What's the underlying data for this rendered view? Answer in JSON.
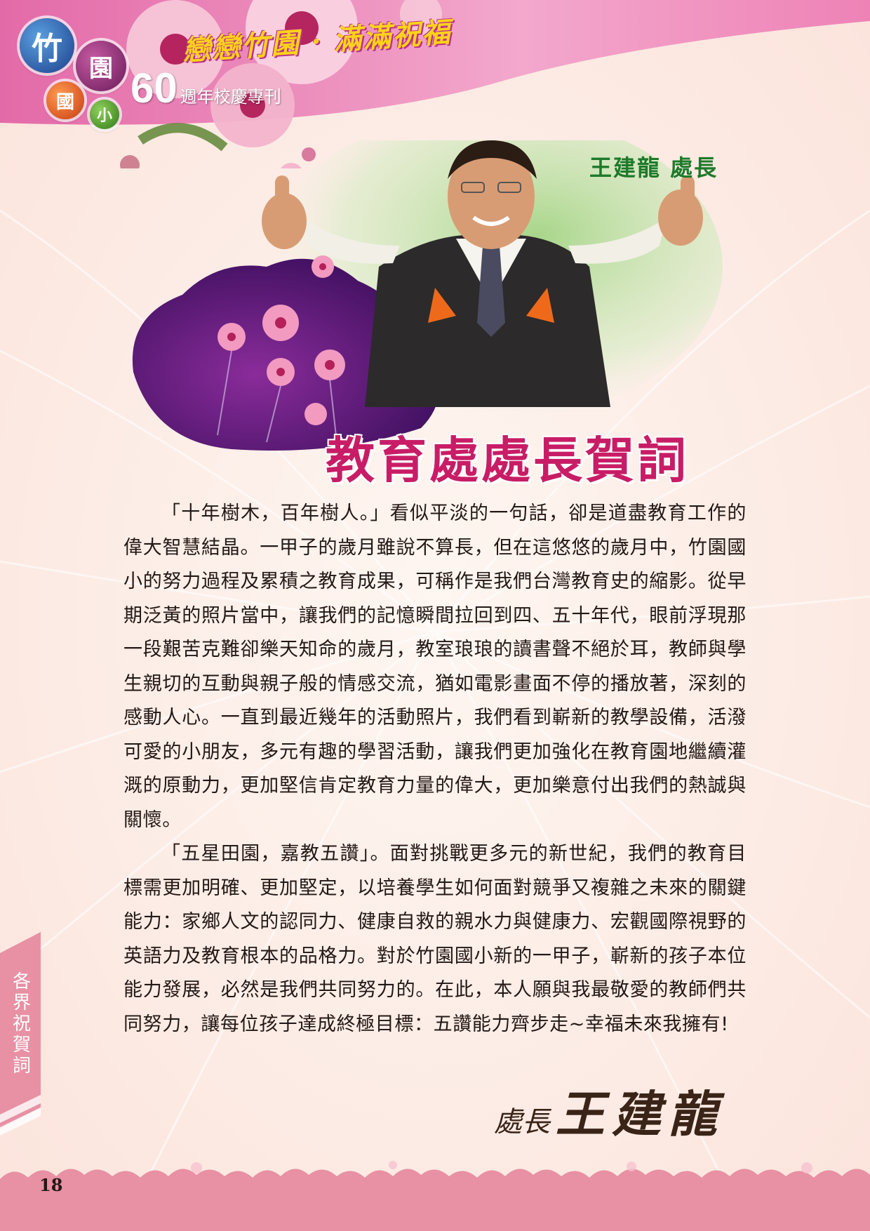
{
  "header": {
    "badges": [
      "竹",
      "園",
      "國",
      "小"
    ],
    "slogan": "戀戀竹園 · 滿滿祝福",
    "anniversary_number": "60",
    "anniversary_text": "週年校慶專刊"
  },
  "portrait": {
    "name_title": "王建龍  處長"
  },
  "section_title": "教育處處長賀詞",
  "body": {
    "paragraphs": [
      "「十年樹木，百年樹人。」看似平淡的一句話，卻是道盡教育工作的偉大智慧結晶。一甲子的歲月雖說不算長，但在這悠悠的歲月中，竹園國小的努力過程及累積之教育成果，可稱作是我們台灣教育史的縮影。從早期泛黃的照片當中，讓我們的記憶瞬間拉回到四、五十年代，眼前浮現那一段艱苦克難卻樂天知命的歲月，教室琅琅的讀書聲不絕於耳，教師與學生親切的互動與親子般的情感交流，猶如電影畫面不停的播放著，深刻的感動人心。一直到最近幾年的活動照片，我們看到嶄新的教學設備，活潑可愛的小朋友，多元有趣的學習活動，讓我們更加強化在教育園地繼續灌溉的原動力，更加堅信肯定教育力量的偉大，更加樂意付出我們的熱誠與關懷。",
      "「五星田園，嘉教五讚」。面對挑戰更多元的新世紀，我們的教育目標需更加明確、更加堅定，以培養學生如何面對競爭又複雜之未來的關鍵能力：家鄉人文的認同力、健康自救的親水力與健康力、宏觀國際視野的英語力及教育根本的品格力。對於竹園國小新的一甲子，嶄新的孩子本位能力發展，必然是我們共同努力的。在此，本人願與我最敬愛的教師們共同努力，讓每位孩子達成終極目標：五讚能力齊步走~幸福未來我擁有!"
    ]
  },
  "signature": {
    "title": "處長",
    "name": "王建龍"
  },
  "side_tab": {
    "label": "各界祝賀詞"
  },
  "footer": {
    "page_number": "18"
  },
  "colors": {
    "header_pink": "#e36aa8",
    "title_magenta": "#c81d66",
    "name_green": "#1d7a2a",
    "footer_pink": "#e890a4",
    "background": "#fdf1ec"
  }
}
